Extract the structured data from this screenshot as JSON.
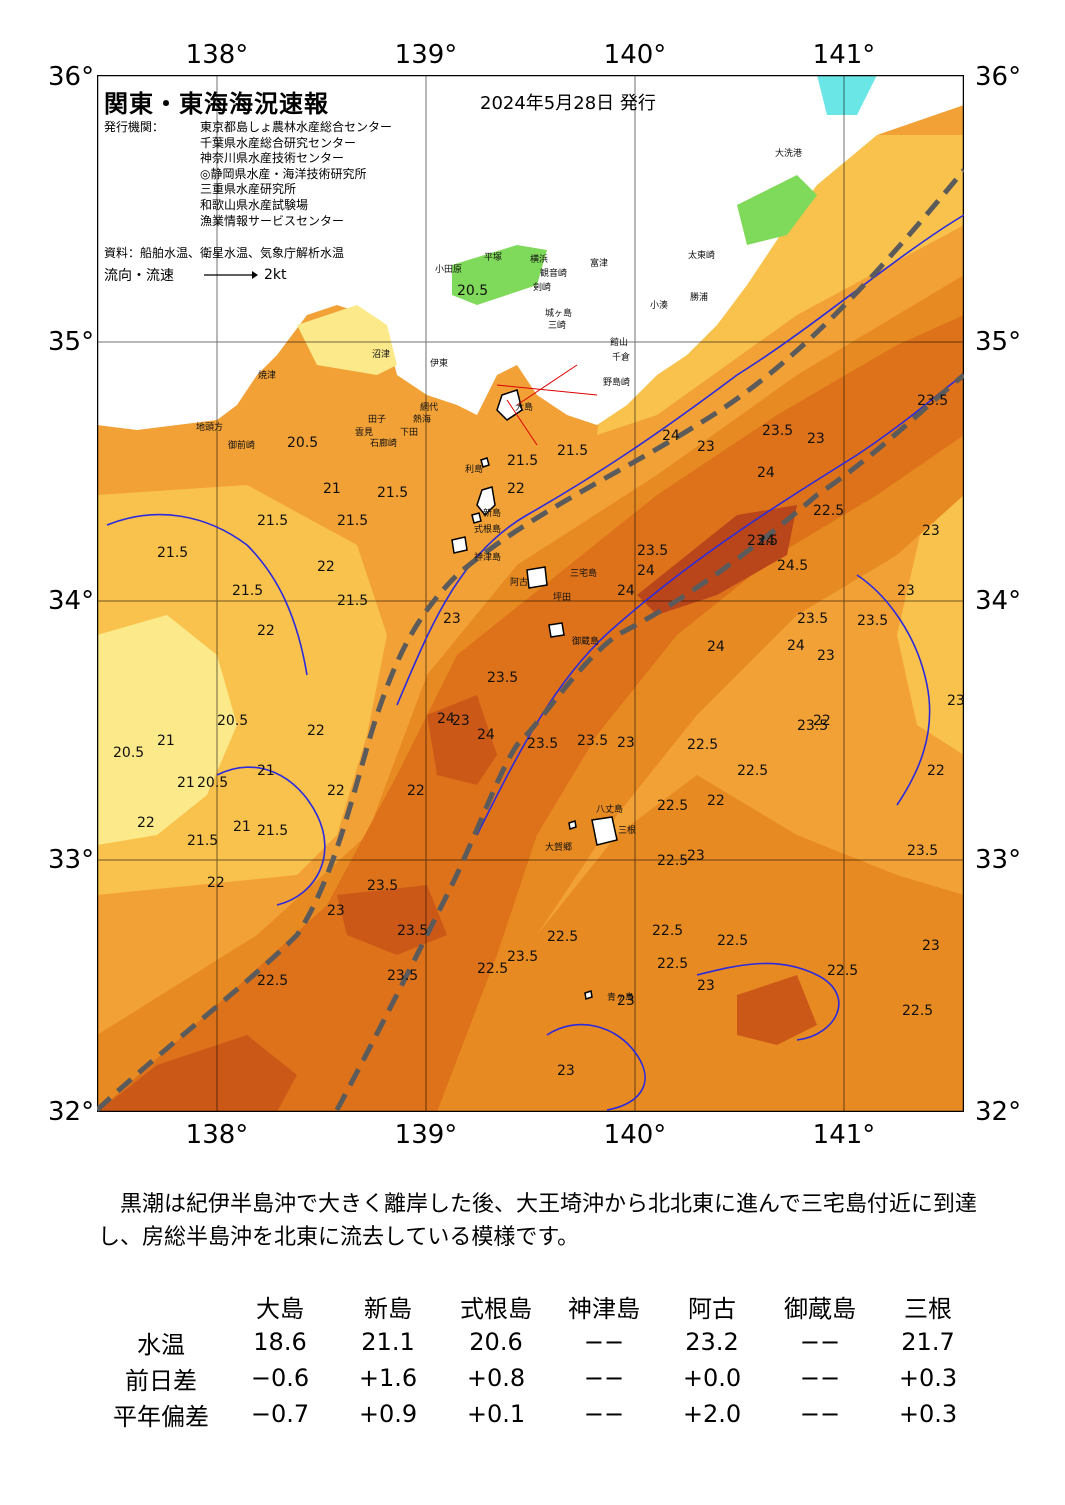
{
  "map": {
    "title": "関東・東海海況速報",
    "issue_date": "2024年5月28日 発行",
    "issuer_label": "発行機関：",
    "agencies": [
      "東京都島しょ農林水産総合センター",
      "千葉県水産総合研究センター",
      "神奈川県水産技術センター",
      "◎静岡県水産・海洋技術研究所",
      "三重県水産研究所",
      "和歌山県水産試験場",
      "漁業情報サービスセンター"
    ],
    "source": "資料：船舶水温、衛星水温、気象庁解析水温",
    "legend_label": "流向・流速",
    "legend_speed": "2kt",
    "lon_labels": [
      "138°",
      "139°",
      "140°",
      "141°"
    ],
    "lat_labels": [
      "36°",
      "35°",
      "34°",
      "33°",
      "32°"
    ],
    "colors": {
      "t20": "#fbe98a",
      "t21": "#f9c24c",
      "t22": "#f2a136",
      "t23": "#e88a22",
      "t235": "#dd721a",
      "t24": "#cc5818",
      "t245": "#b9461a",
      "contour": "#2b2bdd",
      "kuroshio": "#5b5b5b"
    },
    "place_names": [
      "大洗港",
      "太東崎",
      "勝浦",
      "小湊",
      "富津",
      "横浜",
      "観音崎",
      "剣崎",
      "城ヶ島",
      "三崎",
      "小田原",
      "平塚",
      "館山",
      "千倉",
      "野島崎",
      "網代",
      "熱海",
      "伊東",
      "下田",
      "石廊崎",
      "雲見",
      "田子",
      "沼津",
      "焼津",
      "地頭方",
      "御前崎",
      "利島",
      "新島",
      "式根島",
      "神津島",
      "阿古",
      "坪田",
      "三宅島",
      "御蔵島",
      "八丈島",
      "三根",
      "大賀郷",
      "青ヶ島",
      "大島"
    ],
    "isotherm_labels": [
      "20.5",
      "20.5",
      "20.5",
      "20.5",
      "20.5",
      "21",
      "21",
      "21",
      "21",
      "21",
      "21.5",
      "21.5",
      "21.5",
      "21.5",
      "21.5",
      "21.5",
      "21.5",
      "21.5",
      "21.5",
      "21.5",
      "22",
      "22",
      "22",
      "22",
      "22",
      "22",
      "22",
      "22",
      "22",
      "22",
      "22",
      "22.5",
      "22.5",
      "22.5",
      "22.5",
      "22.5",
      "22.5",
      "22.5",
      "22.5",
      "22.5",
      "22.5",
      "22.5",
      "22.5",
      "22.5",
      "23",
      "23",
      "23",
      "23",
      "23",
      "23",
      "23",
      "23",
      "23",
      "23",
      "23",
      "23",
      "23",
      "23",
      "23",
      "23.5",
      "23.5",
      "23.5",
      "23.5",
      "23.5",
      "23.5",
      "23.5",
      "23.5",
      "23.5",
      "23.5",
      "23.5",
      "23.5",
      "23.5",
      "23.5",
      "23.5",
      "24",
      "24",
      "24",
      "24",
      "24",
      "24",
      "24",
      "24",
      "24",
      "24.5"
    ]
  },
  "summary": "黒潮は紀伊半島沖で大きく離岸した後、大王埼沖から北北東に進んで三宅島付近に到達し、房総半島沖を北東に流去している模様です。",
  "table": {
    "columns": [
      "大島",
      "新島",
      "式根島",
      "神津島",
      "阿古",
      "御蔵島",
      "三根"
    ],
    "rows": [
      {
        "label": "水温",
        "values": [
          "18.6",
          "21.1",
          "20.6",
          "−−",
          "23.2",
          "−−",
          "21.7"
        ]
      },
      {
        "label": "前日差",
        "values": [
          "−0.6",
          "+1.6",
          "+0.8",
          "−−",
          "+0.0",
          "−−",
          "+0.3"
        ]
      },
      {
        "label": "平年偏差",
        "values": [
          "−0.7",
          "+0.9",
          "+0.1",
          "−−",
          "+2.0",
          "−−",
          "+0.3"
        ]
      }
    ]
  }
}
